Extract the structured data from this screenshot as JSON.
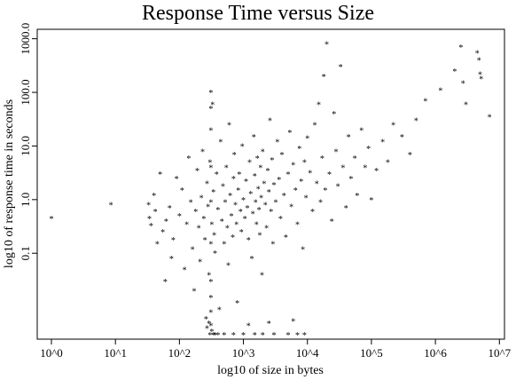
{
  "chart_data": {
    "type": "scatter",
    "title": "Response Time versus Size",
    "xlabel": "log10 of size in bytes",
    "ylabel": "log10 of response time in seconds",
    "marker": "*",
    "x_scale": "log10",
    "y_scale": "log10",
    "xlim": [
      0.6,
      12000000
    ],
    "ylim": [
      0.0025,
      1500
    ],
    "x_ticks": [
      {
        "value": 1,
        "label": "10^0"
      },
      {
        "value": 10,
        "label": "10^1"
      },
      {
        "value": 100,
        "label": "10^2"
      },
      {
        "value": 1000,
        "label": "10^3"
      },
      {
        "value": 10000,
        "label": "10^4"
      },
      {
        "value": 100000,
        "label": "10^5"
      },
      {
        "value": 1000000,
        "label": "10^6"
      },
      {
        "value": 10000000,
        "label": "10^7"
      }
    ],
    "y_ticks": [
      {
        "value": 0.1,
        "label": "0.1"
      },
      {
        "value": 1,
        "label": "1.0"
      },
      {
        "value": 10,
        "label": "10.0"
      },
      {
        "value": 100,
        "label": "100.0"
      },
      {
        "value": 1000,
        "label": "1000.0"
      }
    ],
    "grid": false,
    "legend": "none",
    "points": [
      [
        1.0,
        0.45
      ],
      [
        8.5,
        0.8
      ],
      [
        33,
        0.8
      ],
      [
        34,
        0.45
      ],
      [
        36,
        0.33
      ],
      [
        40,
        1.2
      ],
      [
        42,
        0.6
      ],
      [
        45,
        0.15
      ],
      [
        50,
        3
      ],
      [
        55,
        0.25
      ],
      [
        60,
        0.03
      ],
      [
        62,
        0.4
      ],
      [
        70,
        0.7
      ],
      [
        75,
        0.08
      ],
      [
        80,
        0.18
      ],
      [
        90,
        2.5
      ],
      [
        100,
        0.5
      ],
      [
        110,
        1.5
      ],
      [
        120,
        0.05
      ],
      [
        130,
        0.35
      ],
      [
        140,
        6
      ],
      [
        150,
        0.9
      ],
      [
        160,
        0.12
      ],
      [
        170,
        0.02
      ],
      [
        180,
        0.6
      ],
      [
        190,
        3.5
      ],
      [
        200,
        0.3
      ],
      [
        210,
        0.07
      ],
      [
        220,
        1.1
      ],
      [
        230,
        8
      ],
      [
        240,
        0.45
      ],
      [
        250,
        0.18
      ],
      [
        260,
        0.006
      ],
      [
        270,
        2
      ],
      [
        280,
        0.75
      ],
      [
        290,
        0.04
      ],
      [
        300,
        5
      ],
      [
        310,
        100
      ],
      [
        320,
        0.35
      ],
      [
        330,
        60
      ],
      [
        340,
        1.4
      ],
      [
        350,
        0.22
      ],
      [
        360,
        0.1
      ],
      [
        380,
        3
      ],
      [
        400,
        0.65
      ],
      [
        420,
        0.009
      ],
      [
        440,
        12
      ],
      [
        460,
        0.4
      ],
      [
        480,
        1.8
      ],
      [
        500,
        0.15
      ],
      [
        520,
        0.9
      ],
      [
        540,
        4
      ],
      [
        560,
        0.3
      ],
      [
        580,
        0.06
      ],
      [
        600,
        25
      ],
      [
        620,
        1.2
      ],
      [
        650,
        0.5
      ],
      [
        680,
        0.2
      ],
      [
        700,
        2.5
      ],
      [
        720,
        7
      ],
      [
        750,
        0.8
      ],
      [
        780,
        0.35
      ],
      [
        800,
        0.012
      ],
      [
        830,
        1.5
      ],
      [
        860,
        3
      ],
      [
        900,
        0.6
      ],
      [
        930,
        0.25
      ],
      [
        960,
        10
      ],
      [
        1000,
        1.0
      ],
      [
        1050,
        0.45
      ],
      [
        1100,
        2.2
      ],
      [
        1150,
        0.7
      ],
      [
        1200,
        0.18
      ],
      [
        1250,
        5
      ],
      [
        1300,
        1.3
      ],
      [
        1350,
        0.08
      ],
      [
        1400,
        0.55
      ],
      [
        1450,
        15
      ],
      [
        1500,
        2.8
      ],
      [
        1550,
        0.9
      ],
      [
        1600,
        0.35
      ],
      [
        1650,
        6
      ],
      [
        1700,
        1.6
      ],
      [
        1750,
        0.65
      ],
      [
        1800,
        0.22
      ],
      [
        1850,
        4
      ],
      [
        1900,
        1.1
      ],
      [
        1950,
        0.04
      ],
      [
        2000,
        8
      ],
      [
        2100,
        2
      ],
      [
        2200,
        0.8
      ],
      [
        2300,
        0.3
      ],
      [
        2400,
        3.5
      ],
      [
        2500,
        1.4
      ],
      [
        2600,
        30
      ],
      [
        2700,
        0.6
      ],
      [
        2800,
        5.5
      ],
      [
        2900,
        0.15
      ],
      [
        3000,
        1.9
      ],
      [
        3200,
        0.9
      ],
      [
        3400,
        12
      ],
      [
        3600,
        2.4
      ],
      [
        3800,
        0.45
      ],
      [
        4000,
        7
      ],
      [
        4300,
        1.2
      ],
      [
        4600,
        0.2
      ],
      [
        5000,
        3
      ],
      [
        5300,
        18
      ],
      [
        5600,
        0.75
      ],
      [
        6000,
        4.5
      ],
      [
        6500,
        1.5
      ],
      [
        7000,
        0.35
      ],
      [
        7500,
        9
      ],
      [
        8000,
        2.2
      ],
      [
        8500,
        0.12
      ],
      [
        9000,
        5
      ],
      [
        9500,
        1.1
      ],
      [
        10000,
        14
      ],
      [
        11000,
        3.2
      ],
      [
        12000,
        0.6
      ],
      [
        13000,
        25
      ],
      [
        14000,
        2
      ],
      [
        15000,
        60
      ],
      [
        16000,
        0.9
      ],
      [
        17000,
        6
      ],
      [
        18000,
        200
      ],
      [
        19000,
        1.5
      ],
      [
        20000,
        800
      ],
      [
        22000,
        3
      ],
      [
        24000,
        0.4
      ],
      [
        26000,
        40
      ],
      [
        28000,
        8
      ],
      [
        30000,
        1.8
      ],
      [
        33000,
        300
      ],
      [
        36000,
        4
      ],
      [
        40000,
        0.7
      ],
      [
        44000,
        15
      ],
      [
        48000,
        2.5
      ],
      [
        55000,
        6
      ],
      [
        60000,
        1.2
      ],
      [
        70000,
        20
      ],
      [
        80000,
        4
      ],
      [
        90000,
        9
      ],
      [
        100000,
        1.0
      ],
      [
        120000,
        3.5
      ],
      [
        150000,
        12
      ],
      [
        180000,
        5
      ],
      [
        220000,
        25
      ],
      [
        300000,
        15
      ],
      [
        400000,
        7
      ],
      [
        500000,
        30
      ],
      [
        700000,
        70
      ],
      [
        1200000,
        110
      ],
      [
        2000000,
        250
      ],
      [
        2500000,
        700
      ],
      [
        2700000,
        150
      ],
      [
        3000000,
        60
      ],
      [
        4500000,
        550
      ],
      [
        4800000,
        400
      ],
      [
        5000000,
        220
      ],
      [
        5200000,
        180
      ],
      [
        7000000,
        35
      ],
      [
        300,
        0.003
      ],
      [
        320,
        0.0035
      ],
      [
        340,
        0.003
      ],
      [
        360,
        0.003
      ],
      [
        400,
        0.003
      ],
      [
        500,
        0.003
      ],
      [
        700,
        0.003
      ],
      [
        1000,
        0.003
      ],
      [
        1500,
        0.003
      ],
      [
        2000,
        0.003
      ],
      [
        3000,
        0.003
      ],
      [
        5000,
        0.003
      ],
      [
        7000,
        0.003
      ],
      [
        9000,
        0.003
      ],
      [
        270,
        0.004
      ],
      [
        290,
        0.005
      ],
      [
        310,
        0.0045
      ],
      [
        1200,
        0.0045
      ],
      [
        2500,
        0.005
      ],
      [
        6000,
        0.0055
      ],
      [
        310,
        0.008
      ],
      [
        310,
        0.015
      ],
      [
        310,
        0.03
      ],
      [
        310,
        0.15
      ],
      [
        310,
        0.9
      ],
      [
        310,
        4
      ],
      [
        310,
        20
      ],
      [
        310,
        50
      ]
    ]
  }
}
